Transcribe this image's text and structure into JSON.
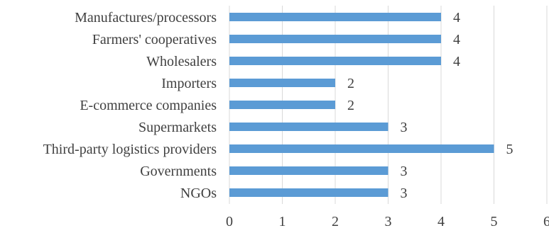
{
  "chart_data": {
    "type": "bar",
    "orientation": "horizontal",
    "categories": [
      "Manufactures/processors",
      "Farmers' cooperatives",
      "Wholesalers",
      "Importers",
      "E-commerce companies",
      "Supermarkets",
      "Third-party logistics providers",
      "Governments",
      "NGOs"
    ],
    "values": [
      4,
      4,
      4,
      2,
      2,
      3,
      5,
      3,
      3
    ],
    "xlim": [
      0,
      6
    ],
    "xticks": [
      "0",
      "1",
      "2",
      "3",
      "4",
      "5",
      "6"
    ],
    "title": "",
    "xlabel": "",
    "ylabel": "",
    "grid": "vertical",
    "legend": "none",
    "data_labels": true,
    "colors": {
      "bar": "#5b9bd5",
      "grid": "#d9d9d9",
      "text": "#404040"
    }
  }
}
